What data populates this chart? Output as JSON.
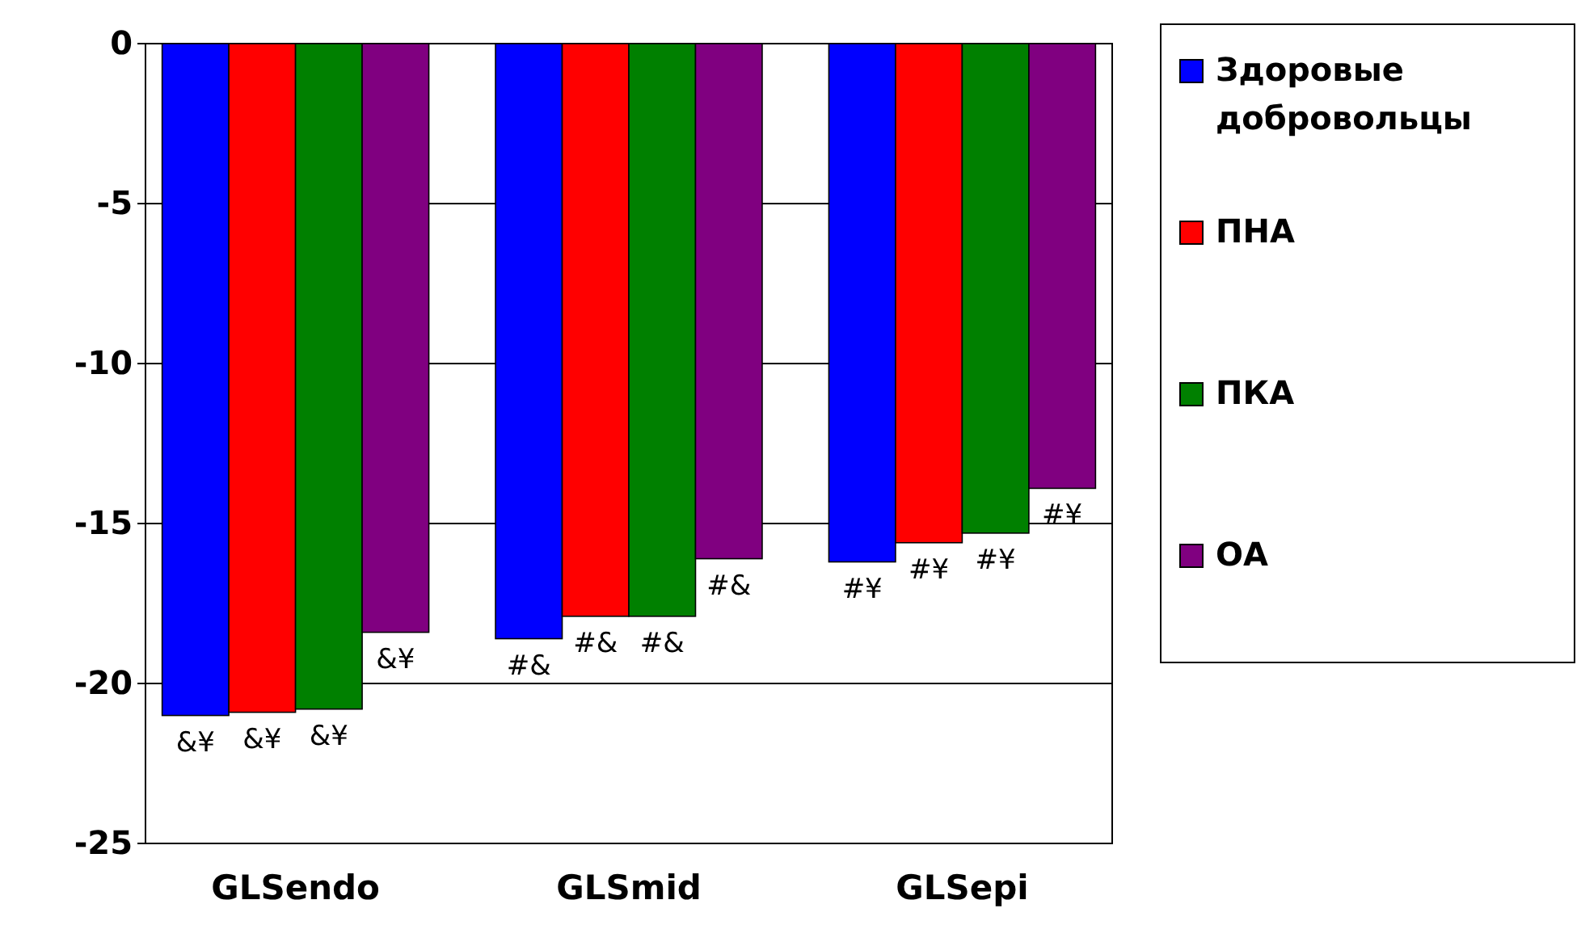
{
  "chart_data": {
    "type": "bar",
    "categories": [
      "GLSendo",
      "GLSmid",
      "GLSepi"
    ],
    "series": [
      {
        "name": "Здоровые добровольцы",
        "color": "#0000ff",
        "values": [
          -21.0,
          -18.6,
          -16.2
        ]
      },
      {
        "name": "ПНА",
        "color": "#ff0000",
        "values": [
          -20.9,
          -17.9,
          -15.6
        ]
      },
      {
        "name": "ПКА",
        "color": "#008000",
        "values": [
          -20.8,
          -17.9,
          -15.3
        ]
      },
      {
        "name": "ОА",
        "color": "#800080",
        "values": [
          -18.4,
          -16.1,
          -13.9
        ]
      }
    ],
    "ylim": [
      -25,
      0
    ],
    "yticks": [
      -25,
      -20,
      -15,
      -10,
      -5,
      0
    ],
    "grid": "y",
    "legend": "right",
    "annotations": [
      "&¥",
      "&¥",
      "&¥",
      "&¥",
      "#&",
      "#&",
      "#&",
      "#&",
      "#¥",
      "#¥",
      "#¥",
      "#¥"
    ]
  }
}
